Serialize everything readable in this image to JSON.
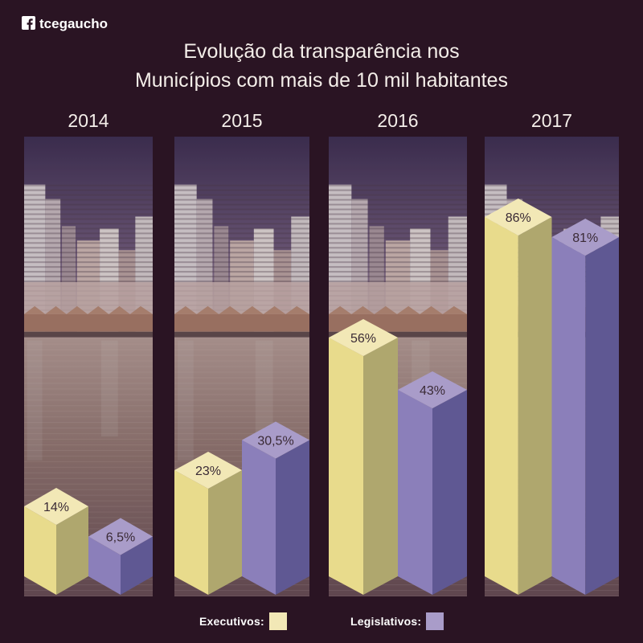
{
  "brand": {
    "name": "tcegaucho",
    "icon": "facebook-icon"
  },
  "colors": {
    "background": "#2a1423",
    "text": "#f4eee9"
  },
  "chart_data": {
    "type": "bar",
    "style": "3d-bars",
    "title": [
      "Evolução da transparência nos",
      "Municípios com mais de 10 mil habitantes"
    ],
    "categories": [
      "2014",
      "2015",
      "2016",
      "2017"
    ],
    "ylim": [
      0,
      100
    ],
    "grid": false,
    "legend": "bottom-center",
    "series": [
      {
        "name": "Executivos",
        "values": [
          14,
          23,
          56,
          86
        ],
        "labels": [
          "14%",
          "23%",
          "56%",
          "86%"
        ],
        "colors": {
          "top": "#f2e8b6",
          "left": "#e8db8c",
          "right": "#afa76e"
        }
      },
      {
        "name": "Legislativos",
        "values": [
          6.5,
          30.5,
          43,
          81
        ],
        "labels": [
          "6,5%",
          "30,5%",
          "43%",
          "81%"
        ],
        "colors": {
          "top": "#a99cc9",
          "left": "#8b7fba",
          "right": "#5f5893"
        }
      }
    ]
  }
}
